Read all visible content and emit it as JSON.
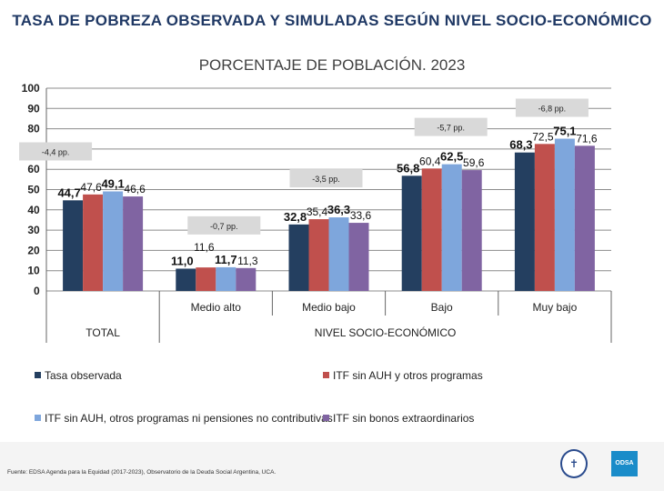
{
  "chart_data": {
    "type": "bar",
    "title": "TASA DE POBREZA OBSERVADA Y SIMULADAS SEGÚN NIVEL SOCIO-ECONÓMICO",
    "subtitle": "PORCENTAJE DE POBLACIÓN. 2023",
    "categories": [
      "TOTAL",
      "Medio alto",
      "Medio bajo",
      "Bajo",
      "Muy bajo"
    ],
    "xgroup_label": "NIVEL SOCIO-ECONÓMICO",
    "ylim": [
      0,
      100
    ],
    "yticks": [
      0,
      10,
      20,
      30,
      40,
      50,
      60,
      70,
      80,
      90,
      100
    ],
    "grid": true,
    "legend_position": "bottom",
    "series": [
      {
        "name": "Tasa observada",
        "color": "#243f60",
        "values": [
          44.7,
          11.0,
          32.8,
          56.8,
          68.3
        ],
        "labels": [
          "44,7",
          "11,0",
          "32,8",
          "56,8",
          "68,3"
        ],
        "bold_labels": true
      },
      {
        "name": "ITF sin AUH y otros programas",
        "color": "#c0504d",
        "values": [
          47.6,
          11.6,
          35.4,
          60.4,
          72.5
        ],
        "labels": [
          "47,6",
          "11,6",
          "35,4",
          "60,4",
          "72,5"
        ],
        "bold_labels": false
      },
      {
        "name": "ITF sin AUH, otros programas ni pensiones no contributivas",
        "color": "#7ea6dc",
        "values": [
          49.1,
          11.7,
          36.3,
          62.5,
          75.1
        ],
        "labels": [
          "49,1",
          "11,7",
          "36,3",
          "62,5",
          "75,1"
        ],
        "bold_labels": true
      },
      {
        "name": "ITF sin bonos extraordinarios",
        "color": "#8064a2",
        "values": [
          46.6,
          11.3,
          33.6,
          59.6,
          71.6
        ],
        "labels": [
          "46,6",
          "11,3",
          "33,6",
          "59,6",
          "71,6"
        ],
        "bold_labels": false
      }
    ],
    "annotations": [
      "-4,4 pp.",
      "-0,7 pp.",
      "-3,5 pp.",
      "-5,7 pp.",
      "-6,8 pp."
    ]
  },
  "footer": {
    "source": "Fuente: EDSA Agenda para la Equidad (2017-2023), Observatorio de la Deuda Social Argentina, UCA.",
    "logo_text": "ODSA"
  }
}
